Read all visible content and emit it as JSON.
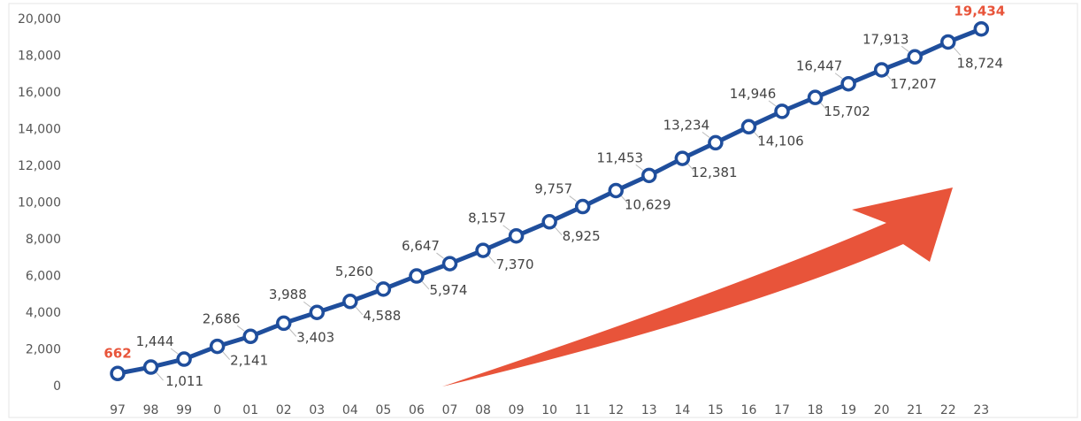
{
  "chart_data": {
    "type": "line",
    "title": "",
    "xlabel": "",
    "ylabel": "",
    "categories": [
      "97",
      "98",
      "99",
      "0",
      "01",
      "02",
      "03",
      "04",
      "05",
      "06",
      "07",
      "08",
      "09",
      "10",
      "11",
      "12",
      "13",
      "14",
      "15",
      "16",
      "17",
      "18",
      "19",
      "20",
      "21",
      "22",
      "23"
    ],
    "series": [
      {
        "values": [
          662,
          1011,
          1444,
          2141,
          2686,
          3403,
          3988,
          4588,
          5260,
          5974,
          6647,
          7370,
          8157,
          8925,
          9757,
          10629,
          11453,
          12381,
          13234,
          14106,
          14946,
          15702,
          16447,
          17207,
          17913,
          18724,
          19434
        ]
      }
    ],
    "data_labels": [
      "662",
      "1,011",
      "1,444",
      "2,141",
      "2,686",
      "3,403",
      "3,988",
      "4,588",
      "5,260",
      "5,974",
      "6,647",
      "7,370",
      "8,157",
      "8,925",
      "9,757",
      "10,629",
      "11,453",
      "12,381",
      "13,234",
      "14,106",
      "14,946",
      "15,702",
      "16,447",
      "17,207",
      "17,913",
      "18,724",
      "19,434"
    ],
    "highlighted_labels": [
      "662",
      "19,434"
    ],
    "ylim": [
      0,
      20000
    ],
    "yticks": [
      {
        "value": 0,
        "label": "0"
      },
      {
        "value": 2000,
        "label": "2,000"
      },
      {
        "value": 4000,
        "label": "4,000"
      },
      {
        "value": 6000,
        "label": "6,000"
      },
      {
        "value": 8000,
        "label": "8,000"
      },
      {
        "value": 10000,
        "label": "10,000"
      },
      {
        "value": 12000,
        "label": "12,000"
      },
      {
        "value": 14000,
        "label": "14,000"
      },
      {
        "value": 16000,
        "label": "16,000"
      },
      {
        "value": 18000,
        "label": "18,000"
      },
      {
        "value": 20000,
        "label": "20,000"
      }
    ],
    "grid": false,
    "legend": "none",
    "colors": {
      "line": "#1f4e9c",
      "marker_fill": "#ffffff",
      "highlight_label": "#e8543a",
      "arrow": "#e8543a",
      "tick_text": "#555555",
      "label_text": "#444444"
    },
    "annotations": [
      {
        "type": "trend-arrow",
        "direction": "up-right",
        "color": "#e8543a"
      }
    ]
  }
}
